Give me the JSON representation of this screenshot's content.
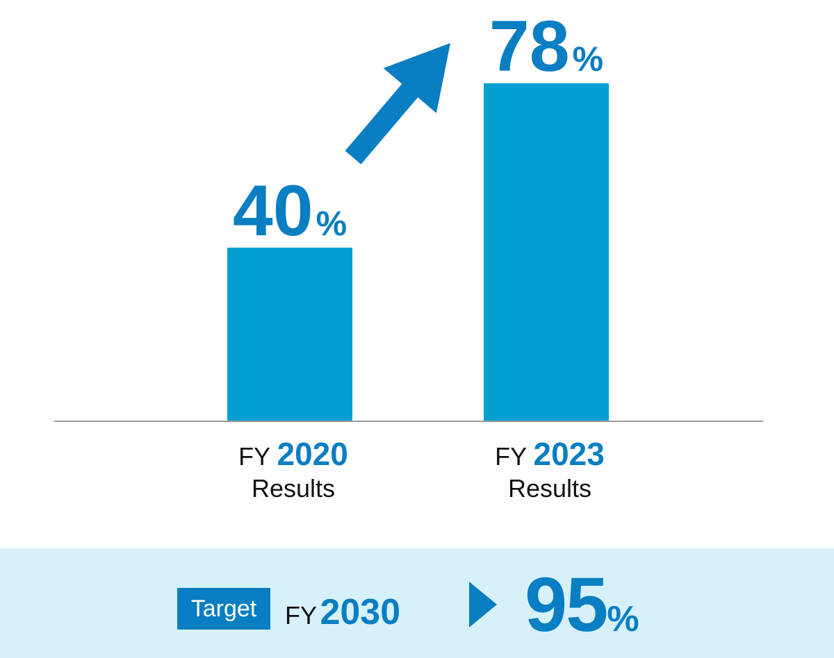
{
  "colors": {
    "bar": "#02a0d0",
    "accent": "#0a7ec2",
    "axis": "#9a9a9a",
    "target_band": "#d7f1fa",
    "text": "#111111"
  },
  "chart_data": {
    "type": "bar",
    "categories": [
      "FY 2020 Results",
      "FY 2023 Results"
    ],
    "values": [
      40,
      78
    ],
    "unit": "%",
    "ylim": [
      0,
      100
    ],
    "grid": false,
    "legend": "none",
    "category_labels": [
      {
        "prefix": "FY",
        "year": "2020",
        "sub": "Results"
      },
      {
        "prefix": "FY",
        "year": "2023",
        "sub": "Results"
      }
    ],
    "annotations": [
      "increase-arrow"
    ]
  },
  "target": {
    "badge": "Target",
    "prefix": "FY",
    "year": "2030",
    "value": 95,
    "unit": "%",
    "arrow_icon": "play-arrow-icon"
  }
}
